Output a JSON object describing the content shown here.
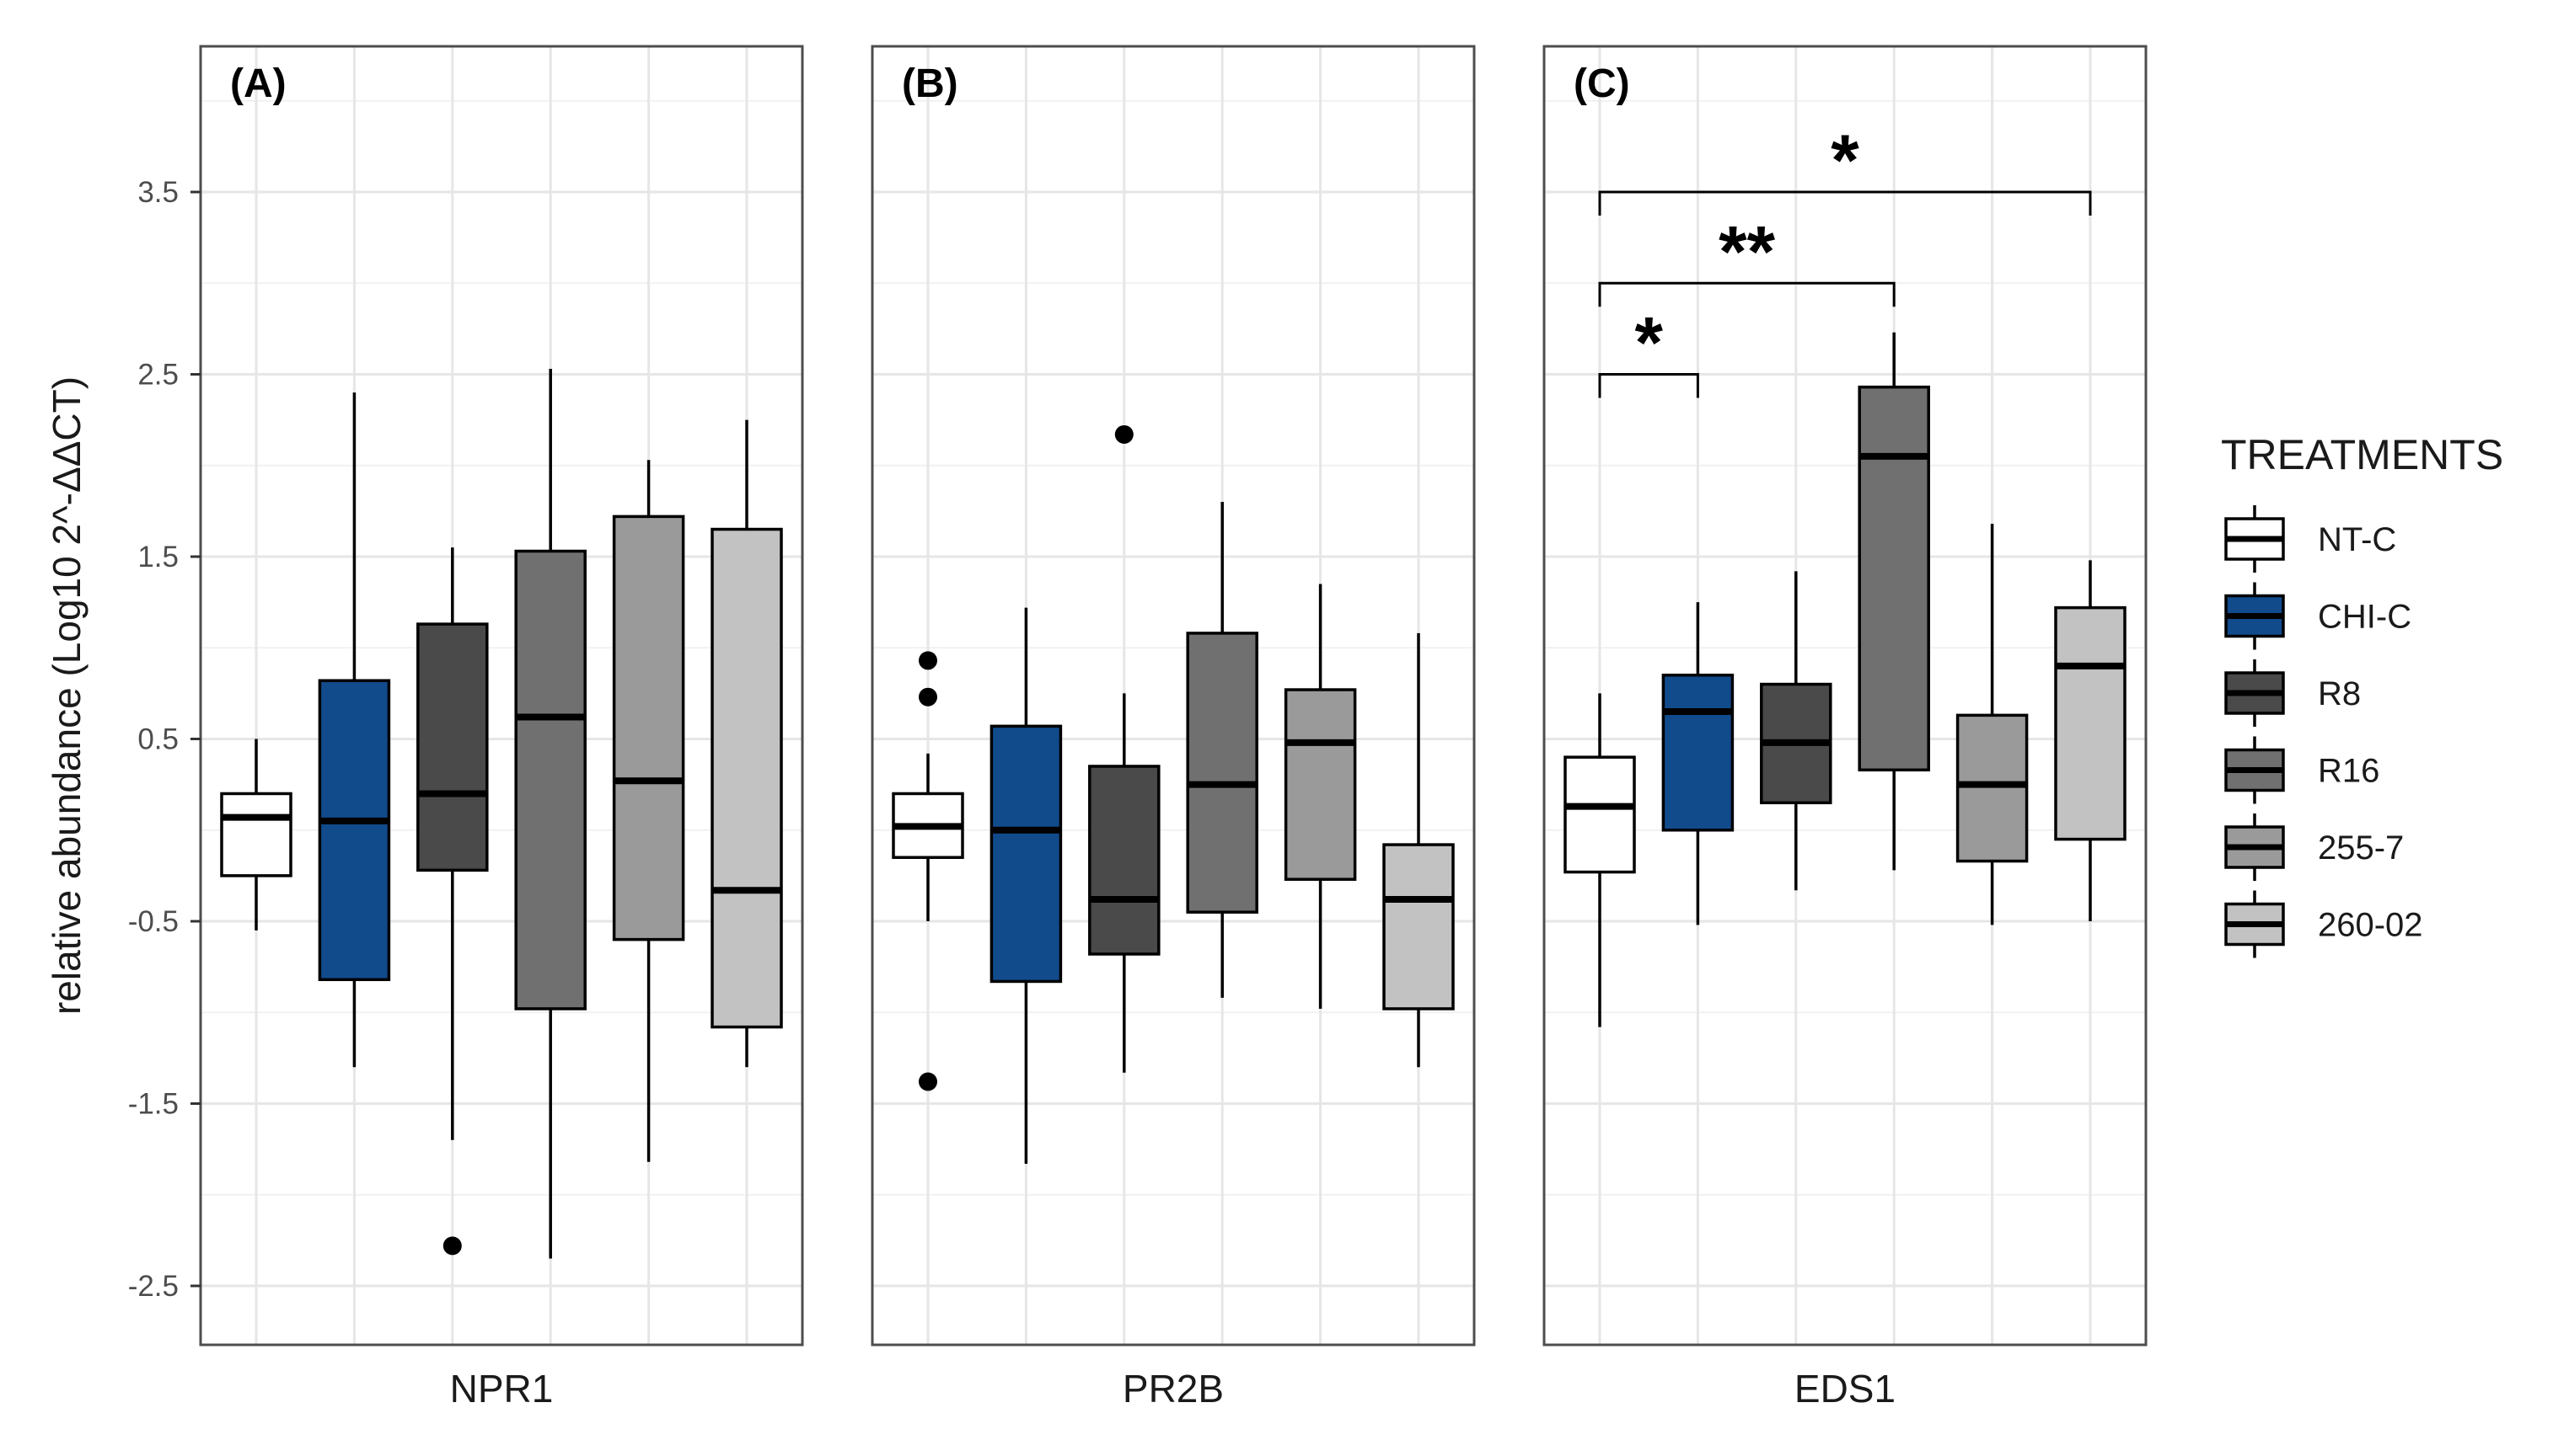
{
  "colors": {
    "NT-C": "#ffffff",
    "CHI-C": "#114b8c",
    "R8": "#4a4a4a",
    "R16": "#707070",
    "255-7": "#9a9a9a",
    "260-02": "#c2c2c2",
    "grid_major": "#e6e6e6",
    "grid_minor": "#f1f1f1",
    "panel_border": "#4d4d4d"
  },
  "chart_data": {
    "type": "boxplot",
    "ylabel": "relative abundance (Log10 2^-ΔΔCT)",
    "ylim": [
      -2.8,
      4.1
    ],
    "yticks": [
      "3.5",
      "2.5",
      "1.5",
      "0.5",
      "-0.5",
      "-1.5",
      "-2.5"
    ],
    "grid": true,
    "legend": {
      "title": "TREATMENTS",
      "position": "right",
      "entries": [
        "NT-C",
        "CHI-C",
        "R8",
        "R16",
        "255-7",
        "260-02"
      ]
    },
    "treatments": [
      "NT-C",
      "CHI-C",
      "R8",
      "R16",
      "255-7",
      "260-02"
    ],
    "panels": [
      {
        "letter": "(A)",
        "gene": "NPR1",
        "boxes": [
          {
            "treatment": "NT-C",
            "whisker_low": -0.55,
            "q1": -0.25,
            "median": 0.07,
            "q3": 0.2,
            "whisker_high": 0.5,
            "outliers": []
          },
          {
            "treatment": "CHI-C",
            "whisker_low": -1.3,
            "q1": -0.82,
            "median": 0.05,
            "q3": 0.82,
            "whisker_high": 2.4,
            "outliers": []
          },
          {
            "treatment": "R8",
            "whisker_low": -1.7,
            "q1": -0.22,
            "median": 0.2,
            "q3": 1.13,
            "whisker_high": 1.55,
            "outliers": [
              -2.28
            ]
          },
          {
            "treatment": "R16",
            "whisker_low": -2.35,
            "q1": -0.98,
            "median": 0.62,
            "q3": 1.53,
            "whisker_high": 2.53,
            "outliers": []
          },
          {
            "treatment": "255-7",
            "whisker_low": -1.82,
            "q1": -0.6,
            "median": 0.27,
            "q3": 1.72,
            "whisker_high": 2.03,
            "outliers": []
          },
          {
            "treatment": "260-02",
            "whisker_low": -1.3,
            "q1": -1.08,
            "median": -0.33,
            "q3": 1.65,
            "whisker_high": 2.25,
            "outliers": []
          }
        ],
        "annotations": []
      },
      {
        "letter": "(B)",
        "gene": "PR2B",
        "boxes": [
          {
            "treatment": "NT-C",
            "whisker_low": -0.5,
            "q1": -0.15,
            "median": 0.02,
            "q3": 0.2,
            "whisker_high": 0.42,
            "outliers": [
              0.93,
              0.73,
              -1.38
            ]
          },
          {
            "treatment": "CHI-C",
            "whisker_low": -1.83,
            "q1": -0.83,
            "median": 0.0,
            "q3": 0.57,
            "whisker_high": 1.22,
            "outliers": []
          },
          {
            "treatment": "R8",
            "whisker_low": -1.33,
            "q1": -0.68,
            "median": -0.38,
            "q3": 0.35,
            "whisker_high": 0.75,
            "outliers": [
              2.17
            ]
          },
          {
            "treatment": "R16",
            "whisker_low": -0.92,
            "q1": -0.45,
            "median": 0.25,
            "q3": 1.08,
            "whisker_high": 1.8,
            "outliers": []
          },
          {
            "treatment": "255-7",
            "whisker_low": -0.98,
            "q1": -0.27,
            "median": 0.48,
            "q3": 0.77,
            "whisker_high": 1.35,
            "outliers": []
          },
          {
            "treatment": "260-02",
            "whisker_low": -1.3,
            "q1": -0.98,
            "median": -0.38,
            "q3": -0.08,
            "whisker_high": 1.08,
            "outliers": []
          }
        ],
        "annotations": []
      },
      {
        "letter": "(C)",
        "gene": "EDS1",
        "boxes": [
          {
            "treatment": "NT-C",
            "whisker_low": -1.08,
            "q1": -0.23,
            "median": 0.13,
            "q3": 0.4,
            "whisker_high": 0.75,
            "outliers": []
          },
          {
            "treatment": "CHI-C",
            "whisker_low": -0.52,
            "q1": 0.0,
            "median": 0.65,
            "q3": 0.85,
            "whisker_high": 1.25,
            "outliers": []
          },
          {
            "treatment": "R8",
            "whisker_low": -0.33,
            "q1": 0.15,
            "median": 0.48,
            "q3": 0.8,
            "whisker_high": 1.42,
            "outliers": []
          },
          {
            "treatment": "R16",
            "whisker_low": -0.22,
            "q1": 0.33,
            "median": 2.05,
            "q3": 2.43,
            "whisker_high": 2.73,
            "outliers": []
          },
          {
            "treatment": "255-7",
            "whisker_low": -0.52,
            "q1": -0.17,
            "median": 0.25,
            "q3": 0.63,
            "whisker_high": 1.68,
            "outliers": []
          },
          {
            "treatment": "260-02",
            "whisker_low": -0.5,
            "q1": -0.05,
            "median": 0.9,
            "q3": 1.22,
            "whisker_high": 1.48,
            "outliers": []
          }
        ],
        "annotations": [
          {
            "from": "NT-C",
            "to": "CHI-C",
            "level": 2.5,
            "label": "*"
          },
          {
            "from": "NT-C",
            "to": "R16",
            "level": 3.0,
            "label": "**"
          },
          {
            "from": "NT-C",
            "to": "260-02",
            "level": 3.5,
            "label": "*"
          }
        ]
      }
    ]
  }
}
